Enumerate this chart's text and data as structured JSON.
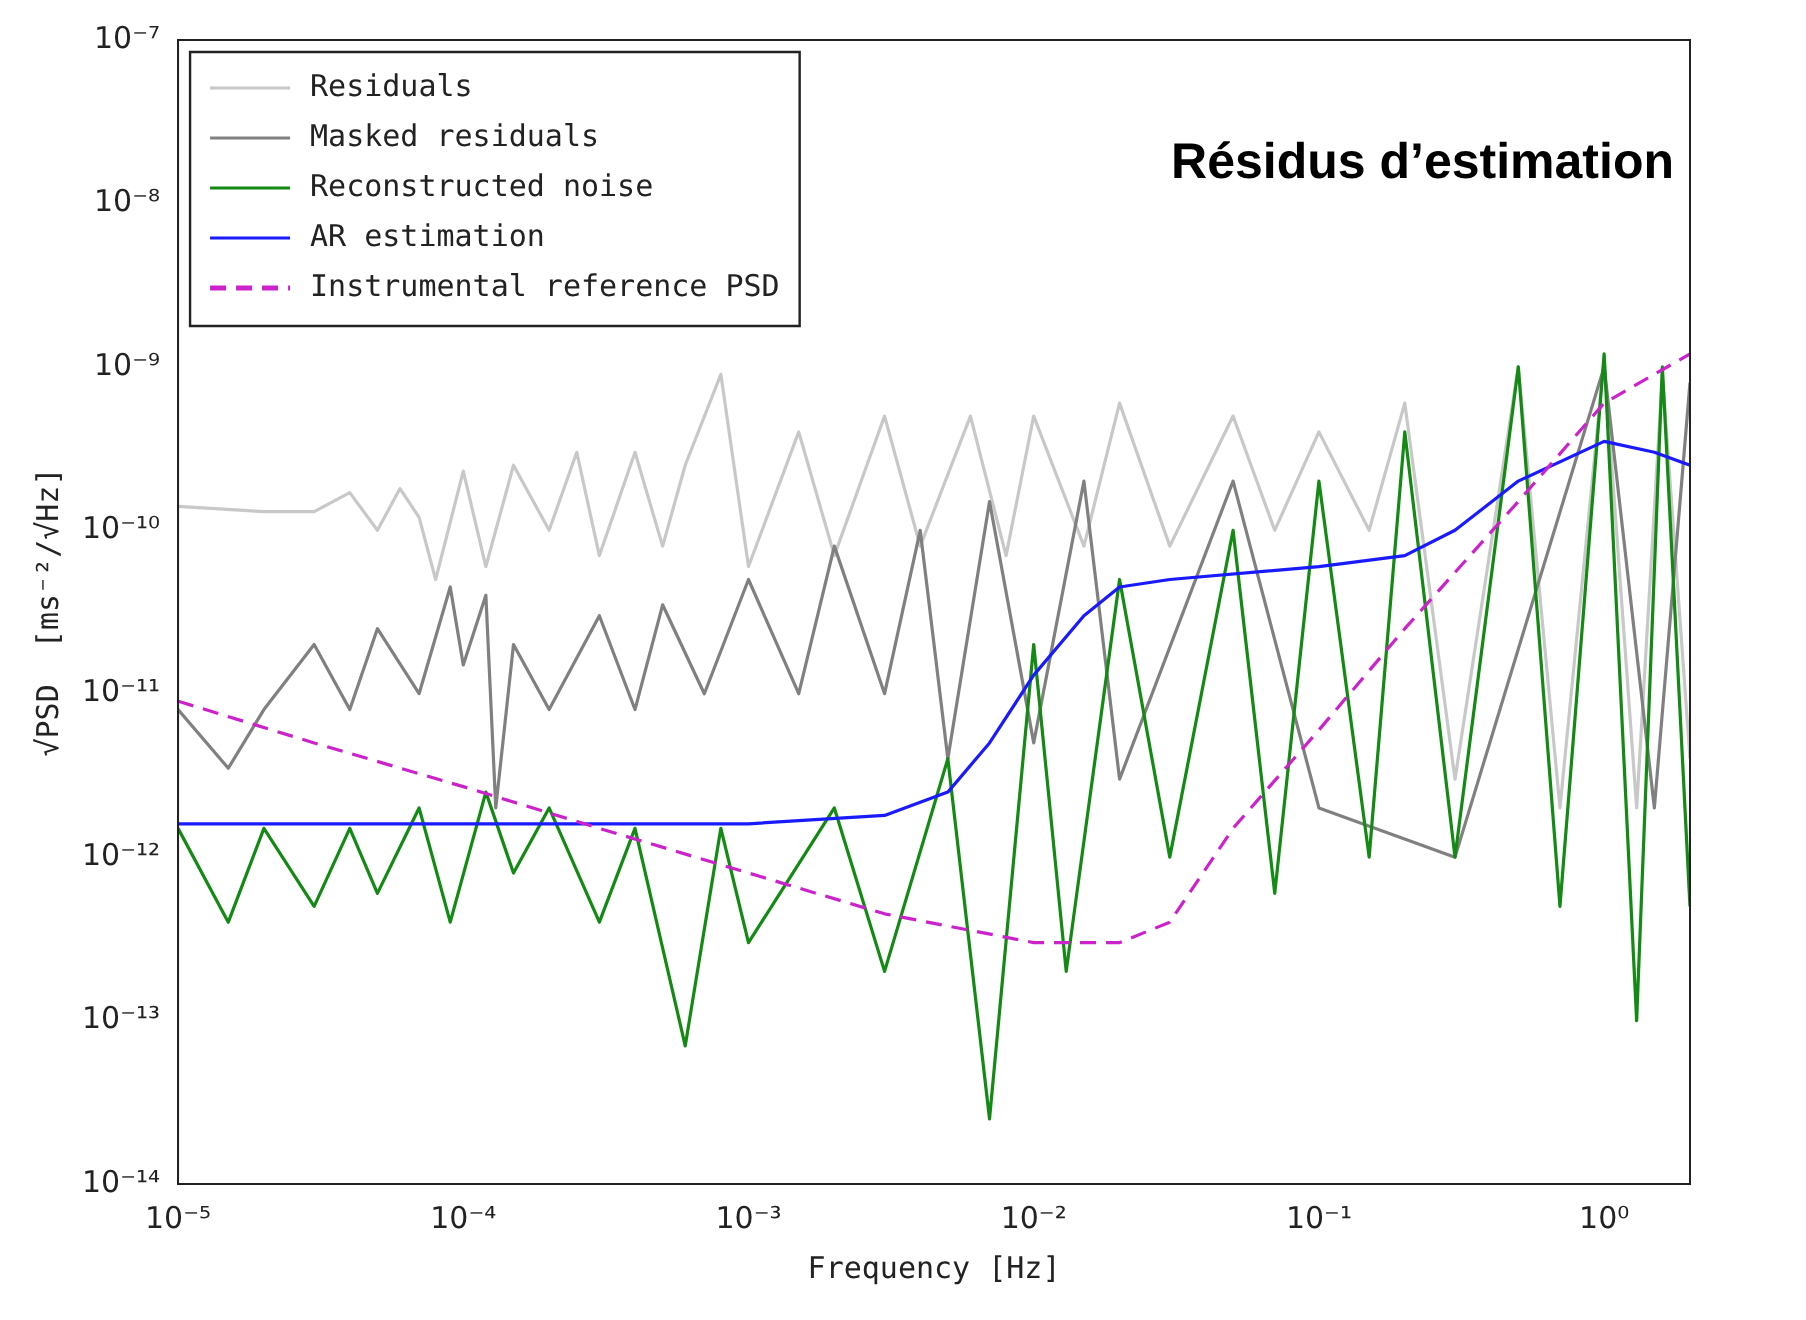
{
  "chart_data": {
    "type": "line",
    "annotations": [
      "Résidus d’estimation"
    ],
    "xlabel": "Frequency [Hz]",
    "ylabel": "√PSD  [ms⁻²/√Hz]",
    "log": "xy",
    "legend": "top left",
    "marker": "none",
    "xlim": [
      1e-05,
      2
    ],
    "ylim": [
      1e-14,
      1e-07
    ],
    "xticks": [
      {
        "value": 1e-05,
        "label": "10⁻⁵"
      },
      {
        "value": 0.0001,
        "label": "10⁻⁴"
      },
      {
        "value": 0.001,
        "label": "10⁻³"
      },
      {
        "value": 0.01,
        "label": "10⁻²"
      },
      {
        "value": 0.1,
        "label": "10⁻¹"
      },
      {
        "value": 1,
        "label": "10⁰"
      }
    ],
    "yticks": [
      {
        "value": 1e-14,
        "label": "10⁻¹⁴"
      },
      {
        "value": 1e-13,
        "label": "10⁻¹³"
      },
      {
        "value": 1e-12,
        "label": "10⁻¹²"
      },
      {
        "value": 1e-11,
        "label": "10⁻¹¹"
      },
      {
        "value": 1e-10,
        "label": "10⁻¹⁰"
      },
      {
        "value": 1e-09,
        "label": "10⁻⁹"
      },
      {
        "value": 1e-08,
        "label": "10⁻⁸"
      },
      {
        "value": 1e-07,
        "label": "10⁻⁷"
      }
    ],
    "series": [
      {
        "name": "Residuals",
        "color": "#c8c8c8",
        "line_style": "solid",
        "x": [
          1e-05,
          2e-05,
          3e-05,
          4e-05,
          5e-05,
          6e-05,
          7e-05,
          8e-05,
          0.0001,
          0.00012,
          0.00015,
          0.0002,
          0.00025,
          0.0003,
          0.0004,
          0.0005,
          0.0006,
          0.0008,
          0.001,
          0.0015,
          0.002,
          0.003,
          0.004,
          0.006,
          0.008,
          0.01,
          0.015,
          0.02,
          0.03,
          0.05,
          0.07,
          0.1,
          0.15,
          0.2,
          0.3,
          0.5,
          0.7,
          1,
          1.3,
          1.6,
          2
        ],
        "values": [
          1.4e-10,
          1.3e-10,
          1.3e-10,
          1.7e-10,
          1e-10,
          1.8e-10,
          1.2e-10,
          5e-11,
          2.3e-10,
          6e-11,
          2.5e-10,
          1e-10,
          3e-10,
          7e-11,
          3e-10,
          8e-11,
          2.5e-10,
          9e-10,
          6e-11,
          4e-10,
          7e-11,
          5e-10,
          8e-11,
          5e-10,
          7e-11,
          5e-10,
          8e-11,
          6e-10,
          8e-11,
          5e-10,
          1e-10,
          4e-10,
          1e-10,
          6e-10,
          3e-12,
          1e-09,
          2e-12,
          1.1e-09,
          2e-12,
          9e-10,
          4e-12
        ]
      },
      {
        "name": "Masked residuals",
        "color": "#808080",
        "line_style": "solid",
        "x": [
          1e-05,
          1.5e-05,
          2e-05,
          3e-05,
          4e-05,
          5e-05,
          7e-05,
          9e-05,
          0.0001,
          0.00012,
          0.00013,
          0.00015,
          0.0002,
          0.0003,
          0.0004,
          0.0005,
          0.0007,
          0.001,
          0.0015,
          0.002,
          0.003,
          0.004,
          0.005,
          0.007,
          0.01,
          0.015,
          0.02,
          0.05,
          0.1,
          0.3,
          1,
          1.5,
          2
        ],
        "values": [
          8e-12,
          3.5e-12,
          8e-12,
          2e-11,
          8e-12,
          2.5e-11,
          1e-11,
          4.5e-11,
          1.5e-11,
          4e-11,
          2e-12,
          2e-11,
          8e-12,
          3e-11,
          8e-12,
          3.5e-11,
          1e-11,
          5e-11,
          1e-11,
          8e-11,
          1e-11,
          1e-10,
          4e-12,
          1.5e-10,
          5e-12,
          2e-10,
          3e-12,
          2e-10,
          2e-12,
          1e-12,
          1e-09,
          2e-12,
          8e-10
        ]
      },
      {
        "name": "Reconstructed noise",
        "color": "#138a13",
        "line_style": "solid",
        "x": [
          1e-05,
          1.5e-05,
          2e-05,
          3e-05,
          4e-05,
          5e-05,
          7e-05,
          9e-05,
          0.00012,
          0.00015,
          0.0002,
          0.0003,
          0.0004,
          0.0006,
          0.0008,
          0.001,
          0.002,
          0.003,
          0.005,
          0.007,
          0.01,
          0.013,
          0.02,
          0.03,
          0.05,
          0.07,
          0.1,
          0.15,
          0.2,
          0.3,
          0.5,
          0.7,
          1,
          1.3,
          1.6,
          2
        ],
        "values": [
          1.5e-12,
          4e-13,
          1.5e-12,
          5e-13,
          1.5e-12,
          6e-13,
          2e-12,
          4e-13,
          2.5e-12,
          8e-13,
          2e-12,
          4e-13,
          1.5e-12,
          7e-14,
          1.5e-12,
          3e-13,
          2e-12,
          2e-13,
          4e-12,
          2.5e-14,
          2e-11,
          2e-13,
          5e-11,
          1e-12,
          1e-10,
          6e-13,
          2e-10,
          1e-12,
          4e-10,
          1e-12,
          1e-09,
          5e-13,
          1.2e-09,
          1e-13,
          1e-09,
          5e-13
        ]
      },
      {
        "name": "AR estimation",
        "color": "#1a1aff",
        "line_style": "solid",
        "x": [
          1e-05,
          0.001,
          0.003,
          0.005,
          0.007,
          0.01,
          0.015,
          0.02,
          0.03,
          0.1,
          0.2,
          0.3,
          0.5,
          1,
          1.5,
          2
        ],
        "values": [
          1.6e-12,
          1.6e-12,
          1.8e-12,
          2.5e-12,
          5e-12,
          1.3e-11,
          3e-11,
          4.5e-11,
          5e-11,
          6e-11,
          7e-11,
          1e-10,
          2e-10,
          3.5e-10,
          3e-10,
          2.5e-10
        ]
      },
      {
        "name": "Instrumental reference PSD",
        "color": "#cc22cc",
        "line_style": "dashed",
        "x": [
          1e-05,
          3e-05,
          0.0001,
          0.0003,
          0.001,
          0.003,
          0.01,
          0.02,
          0.03,
          0.05,
          0.1,
          0.2,
          0.5,
          1,
          2
        ],
        "values": [
          9e-12,
          5e-12,
          2.7e-12,
          1.5e-12,
          8e-13,
          4.5e-13,
          3e-13,
          3e-13,
          4e-13,
          1.5e-12,
          6e-12,
          2.5e-11,
          1.5e-10,
          6e-10,
          1.2e-09
        ]
      }
    ]
  }
}
